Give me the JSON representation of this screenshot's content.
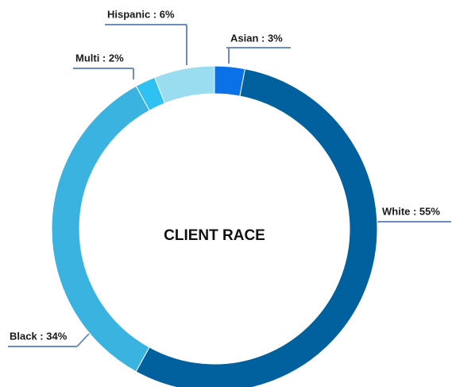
{
  "chart_data": {
    "type": "donut",
    "title": "CLIENT RACE",
    "values": [
      3,
      55,
      34,
      2,
      6
    ],
    "value_labels": [
      "Asian : 3%",
      "White : 55%",
      "Black : 34%",
      "Multi : 2%",
      "Hispanic : 6%"
    ],
    "colors": [
      "#0a72e6",
      "#00619e",
      "#3ab3e0",
      "#2ec2f2",
      "#9adcf0"
    ]
  }
}
